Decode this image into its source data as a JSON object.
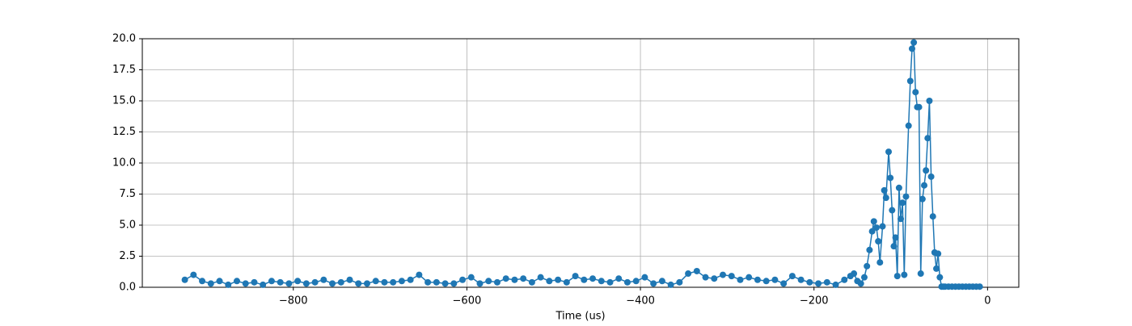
{
  "chart_data": {
    "type": "line",
    "xlabel": "Time (us)",
    "xlim": [
      -974,
      36
    ],
    "ylim": [
      0,
      20
    ],
    "xticks": [
      {
        "value": -800,
        "label": "−800"
      },
      {
        "value": -600,
        "label": "−600"
      },
      {
        "value": -400,
        "label": "−400"
      },
      {
        "value": -200,
        "label": "−200"
      },
      0
    ],
    "yticks": [
      {
        "value": 0,
        "label": "0.0"
      },
      2.5,
      {
        "value": 5,
        "label": "5.0"
      },
      7.5,
      {
        "value": 10,
        "label": "10.0"
      },
      12.5,
      {
        "value": 15,
        "label": "15.0"
      },
      17.5,
      {
        "value": 20,
        "label": "20.0"
      }
    ],
    "grid": true,
    "color": "#1f77b4",
    "x": [
      -925,
      -915,
      -905,
      -895,
      -885,
      -875,
      -865,
      -855,
      -845,
      -835,
      -825,
      -815,
      -805,
      -795,
      -785,
      -775,
      -765,
      -755,
      -745,
      -735,
      -725,
      -715,
      -705,
      -695,
      -685,
      -675,
      -665,
      -655,
      -645,
      -635,
      -625,
      -615,
      -605,
      -595,
      -585,
      -575,
      -565,
      -555,
      -545,
      -535,
      -525,
      -515,
      -505,
      -495,
      -485,
      -475,
      -465,
      -455,
      -445,
      -435,
      -425,
      -415,
      -405,
      -395,
      -385,
      -375,
      -365,
      -355,
      -345,
      -335,
      -325,
      -315,
      -305,
      -295,
      -285,
      -275,
      -265,
      -255,
      -245,
      -235,
      -225,
      -215,
      -205,
      -195,
      -185,
      -175,
      -165,
      -158,
      -154,
      -150,
      -146,
      -142,
      -139,
      -136,
      -133,
      -131,
      -128,
      -126,
      -124,
      -121,
      -119,
      -117,
      -114,
      -112,
      -110,
      -108,
      -106,
      -104,
      -102,
      -100,
      -98,
      -96,
      -94,
      -91,
      -89,
      -87,
      -85,
      -83,
      -81,
      -79,
      -77,
      -75,
      -73,
      -71,
      -69,
      -67,
      -65,
      -63,
      -61,
      -59,
      -57,
      -55,
      -53,
      -51,
      -49,
      -45,
      -41,
      -37,
      -33,
      -29,
      -25,
      -21,
      -17,
      -13,
      -9
    ],
    "values": [
      0.6,
      1.0,
      0.5,
      0.3,
      0.5,
      0.2,
      0.5,
      0.3,
      0.4,
      0.2,
      0.5,
      0.4,
      0.3,
      0.5,
      0.3,
      0.4,
      0.6,
      0.3,
      0.4,
      0.6,
      0.3,
      0.3,
      0.5,
      0.4,
      0.4,
      0.5,
      0.6,
      1.0,
      0.4,
      0.4,
      0.3,
      0.3,
      0.6,
      0.8,
      0.3,
      0.5,
      0.4,
      0.7,
      0.6,
      0.7,
      0.4,
      0.8,
      0.5,
      0.6,
      0.4,
      0.9,
      0.6,
      0.7,
      0.5,
      0.4,
      0.7,
      0.4,
      0.5,
      0.8,
      0.3,
      0.5,
      0.2,
      0.4,
      1.1,
      1.3,
      0.8,
      0.7,
      1.0,
      0.9,
      0.6,
      0.8,
      0.6,
      0.5,
      0.6,
      0.3,
      0.9,
      0.6,
      0.4,
      0.3,
      0.4,
      0.2,
      0.6,
      0.9,
      1.1,
      0.5,
      0.3,
      0.8,
      1.7,
      3.0,
      4.5,
      5.3,
      4.8,
      3.7,
      2.0,
      4.9,
      7.8,
      7.2,
      10.9,
      8.8,
      6.2,
      3.3,
      4.0,
      0.9,
      8.0,
      5.5,
      6.8,
      1.0,
      7.3,
      13.0,
      16.6,
      19.2,
      19.7,
      15.7,
      14.5,
      14.5,
      1.1,
      7.1,
      8.2,
      9.4,
      12.0,
      15.0,
      8.9,
      5.7,
      2.8,
      1.5,
      2.7,
      0.8,
      0.05,
      0.05,
      0.05,
      0.05,
      0.05,
      0.05,
      0.05,
      0.05,
      0.05,
      0.05,
      0.05,
      0.05,
      0.05
    ]
  }
}
